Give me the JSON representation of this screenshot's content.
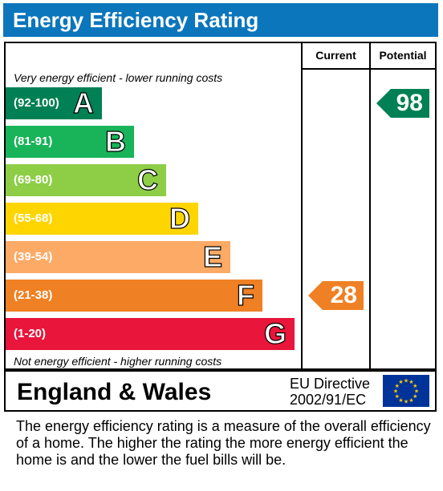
{
  "title": "Energy Efficiency Rating",
  "columns": {
    "current": "Current",
    "potential": "Potential"
  },
  "notes": {
    "top": "Very energy efficient - lower running costs",
    "bottom": "Not energy efficient - higher running costs"
  },
  "footer": {
    "region": "England & Wales",
    "directive_line1": "EU Directive",
    "directive_line2": "2002/91/EC"
  },
  "description": "The energy efficiency rating is a measure of the overall efficiency of a home.  The higher the rating the more energy efficient the home is and the lower the fuel bills will be.",
  "chart_data": {
    "type": "bar",
    "title": "Energy Efficiency Rating",
    "bands": [
      {
        "letter": "A",
        "range": "(92-100)",
        "color": "#008054"
      },
      {
        "letter": "B",
        "range": "(81-91)",
        "color": "#19b459"
      },
      {
        "letter": "C",
        "range": "(69-80)",
        "color": "#8dce46"
      },
      {
        "letter": "D",
        "range": "(55-68)",
        "color": "#ffd500"
      },
      {
        "letter": "E",
        "range": "(39-54)",
        "color": "#fcaa65"
      },
      {
        "letter": "F",
        "range": "(21-38)",
        "color": "#ef8023"
      },
      {
        "letter": "G",
        "range": "(1-20)",
        "color": "#e9153b"
      }
    ],
    "current": {
      "value": 28,
      "band": "F",
      "color": "#ef8023"
    },
    "potential": {
      "value": 98,
      "band": "A",
      "color": "#008054"
    }
  }
}
